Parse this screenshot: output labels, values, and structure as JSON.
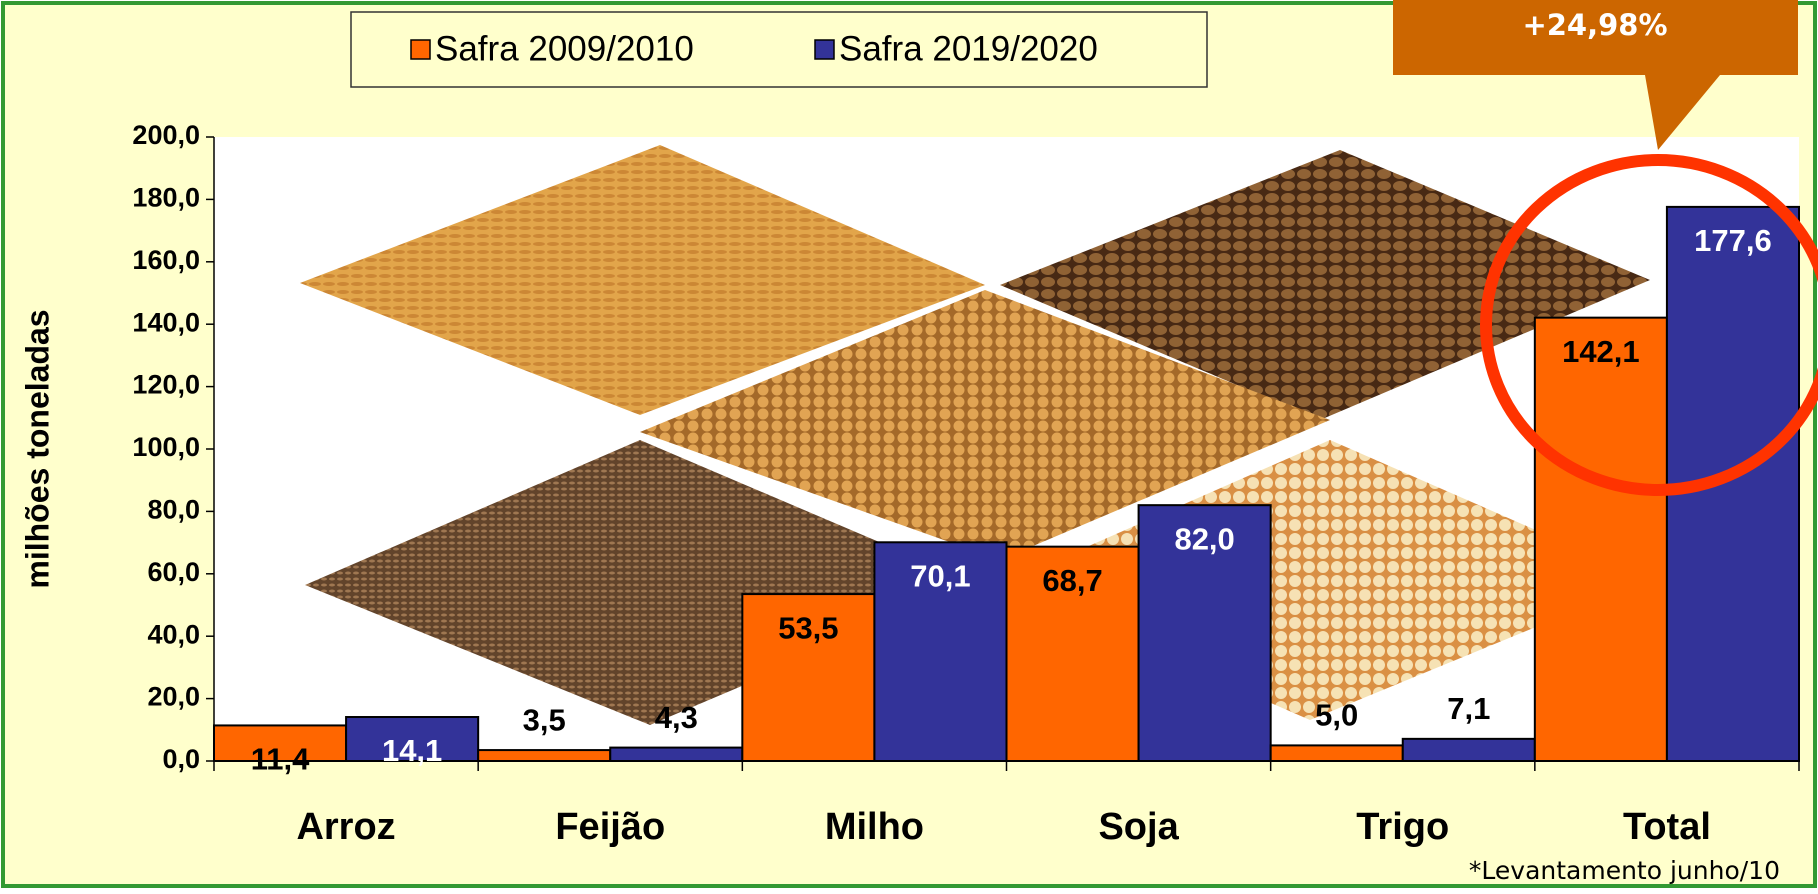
{
  "chart_data": {
    "type": "bar",
    "y_label": "milhões toneladas",
    "categories": [
      "Arroz",
      "Feijão",
      "Milho",
      "Soja",
      "Trigo",
      "Total"
    ],
    "series": [
      {
        "name": "Safra 2009/2010",
        "color": "#ff6600",
        "values": [
          11.4,
          3.5,
          53.5,
          68.7,
          5.0,
          142.1
        ],
        "value_labels": [
          "11,4",
          "3,5",
          "53,5",
          "68,7",
          "5,0",
          "142,1"
        ]
      },
      {
        "name": "Safra 2019/2020",
        "color": "#333399",
        "values": [
          14.1,
          4.3,
          70.1,
          82.0,
          7.1,
          177.6
        ],
        "value_labels": [
          "14,1",
          "4,3",
          "70,1",
          "82,0",
          "7,1",
          "177,6"
        ]
      }
    ],
    "ylim": [
      0,
      200
    ],
    "yticks": [
      {
        "value": 0,
        "label": "0,0"
      },
      {
        "value": 20,
        "label": "20,0"
      },
      {
        "value": 40,
        "label": "40,0"
      },
      {
        "value": 60,
        "label": "60,0"
      },
      {
        "value": 80,
        "label": "80,0"
      },
      {
        "value": 100,
        "label": "100,0"
      },
      {
        "value": 120,
        "label": "120,0"
      },
      {
        "value": 140,
        "label": "140,0"
      },
      {
        "value": 160,
        "label": "160,0"
      },
      {
        "value": 180,
        "label": "180,0"
      },
      {
        "value": 200,
        "label": "200,0"
      }
    ],
    "annotation": "+24,98%",
    "footnote": "*Levantamento junho/10"
  }
}
